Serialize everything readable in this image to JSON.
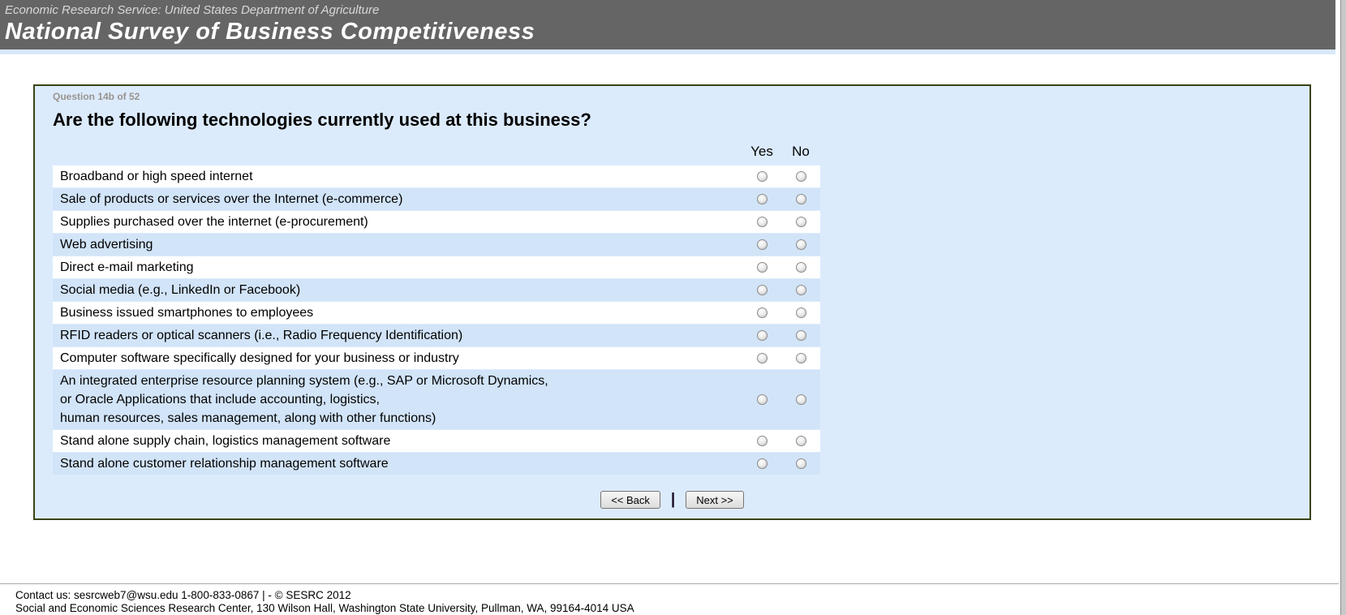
{
  "header": {
    "agency": "Economic Research Service: United States Department of Agriculture",
    "title": "National Survey of Business Competitiveness"
  },
  "survey": {
    "progress": "Question 14b of 52",
    "question": "Are the following technologies currently used at this business?",
    "columns": [
      "Yes",
      "No"
    ],
    "items": [
      "Broadband or high speed internet",
      "Sale of products or services over the Internet (e-commerce)",
      "Supplies purchased over the internet (e-procurement)",
      "Web advertising",
      "Direct e-mail marketing",
      "Social media (e.g., LinkedIn or Facebook)",
      "Business issued smartphones to employees",
      "RFID readers or optical scanners (i.e., Radio Frequency Identification)",
      "Computer software specifically designed for your business or industry",
      [
        "An integrated enterprise resource planning system (e.g., SAP or Microsoft Dynamics,",
        "or Oracle Applications that include accounting, logistics,",
        "human resources, sales management, along with other functions)"
      ],
      "Stand alone supply chain, logistics management software",
      "Stand alone customer relationship management software"
    ],
    "back_label": "<< Back",
    "next_label": "Next >>",
    "button_separator": "|"
  },
  "footer": {
    "line1": "Contact us: sesrcweb7@wsu.edu 1-800-833-0867 | - © SESRC 2012",
    "line2": "Social and Economic Sciences Research Center, 130 Wilson Hall, Washington State University, Pullman, WA, 99164-4014 USA"
  },
  "colors": {
    "header_bg": "#656565",
    "accent_strip": "#d9e8f9",
    "panel_bg": "#dcebfc",
    "panel_border": "#3b4214",
    "row_stripe": "#d2e4f8"
  }
}
